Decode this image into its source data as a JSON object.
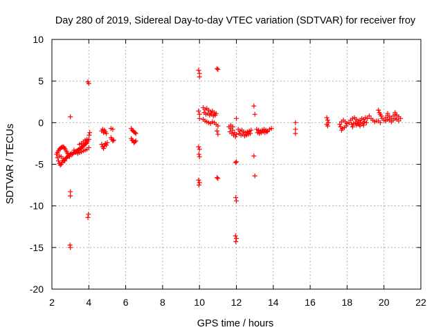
{
  "chart_data": {
    "type": "scatter",
    "title": "Day 280 of 2019, Sidereal Day-to-day VTEC variation (SDTVAR) for receiver froy",
    "xlabel": "GPS time / hours",
    "ylabel": "SDTVAR / TECUs",
    "xlim": [
      2,
      22
    ],
    "ylim": [
      -20,
      10
    ],
    "xticks": [
      2,
      4,
      6,
      8,
      10,
      12,
      14,
      16,
      18,
      20,
      22
    ],
    "yticks": [
      -20,
      -15,
      -10,
      -5,
      0,
      5,
      10
    ],
    "grid": true,
    "marker": "plus",
    "color": "#ff0000",
    "series": [
      {
        "name": "SDTVAR",
        "points": [
          [
            2.25,
            -3.8
          ],
          [
            2.3,
            -4.2
          ],
          [
            2.35,
            -4.6
          ],
          [
            2.4,
            -4.9
          ],
          [
            2.45,
            -5.1
          ],
          [
            2.5,
            -5.0
          ],
          [
            2.55,
            -4.8
          ],
          [
            2.6,
            -4.6
          ],
          [
            2.65,
            -4.5
          ],
          [
            2.7,
            -4.4
          ],
          [
            2.75,
            -4.3
          ],
          [
            2.8,
            -4.2
          ],
          [
            2.85,
            -4.1
          ],
          [
            2.9,
            -4.0
          ],
          [
            2.95,
            -3.9
          ],
          [
            3.0,
            -3.8
          ],
          [
            3.05,
            -3.7
          ],
          [
            2.3,
            -3.6
          ],
          [
            2.35,
            -3.4
          ],
          [
            2.4,
            -3.2
          ],
          [
            2.45,
            -3.1
          ],
          [
            2.5,
            -3.0
          ],
          [
            2.55,
            -2.95
          ],
          [
            2.6,
            -2.9
          ],
          [
            2.65,
            -2.95
          ],
          [
            2.7,
            -3.1
          ],
          [
            2.75,
            -3.3
          ],
          [
            2.8,
            -3.5
          ],
          [
            2.85,
            -3.7
          ],
          [
            2.9,
            -3.9
          ],
          [
            2.95,
            -4.1
          ],
          [
            2.4,
            -4.0
          ],
          [
            2.5,
            -4.1
          ],
          [
            2.6,
            -4.3
          ],
          [
            2.7,
            -4.6
          ],
          [
            3.0,
            0.7
          ],
          [
            3.0,
            -8.3
          ],
          [
            3.0,
            -8.8
          ],
          [
            2.98,
            -14.7
          ],
          [
            3.0,
            -15.0
          ],
          [
            3.1,
            -3.8
          ],
          [
            3.15,
            -3.7
          ],
          [
            3.2,
            -3.6
          ],
          [
            3.25,
            -3.5
          ],
          [
            3.3,
            -3.45
          ],
          [
            3.35,
            -3.4
          ],
          [
            3.4,
            -3.3
          ],
          [
            3.45,
            -3.25
          ],
          [
            3.5,
            -3.2
          ],
          [
            3.55,
            -3.1
          ],
          [
            3.6,
            -3.0
          ],
          [
            3.65,
            -2.9
          ],
          [
            3.7,
            -2.8
          ],
          [
            3.75,
            -2.7
          ],
          [
            3.8,
            -2.6
          ],
          [
            3.85,
            -2.5
          ],
          [
            3.9,
            -2.4
          ],
          [
            3.95,
            -2.2
          ],
          [
            4.0,
            -2.0
          ],
          [
            4.02,
            -1.5
          ],
          [
            4.05,
            -1.2
          ],
          [
            3.2,
            -3.3
          ],
          [
            3.3,
            -3.6
          ],
          [
            3.4,
            -3.7
          ],
          [
            3.5,
            -3.6
          ],
          [
            3.6,
            -3.5
          ],
          [
            3.7,
            -3.4
          ],
          [
            3.8,
            -3.3
          ],
          [
            3.9,
            -3.2
          ],
          [
            4.0,
            -3.0
          ],
          [
            3.5,
            -2.6
          ],
          [
            3.6,
            -2.5
          ],
          [
            3.7,
            -2.3
          ],
          [
            3.8,
            -2.1
          ],
          [
            3.9,
            -2.0
          ],
          [
            3.95,
            4.9
          ],
          [
            4.0,
            4.7
          ],
          [
            3.98,
            -11.0
          ],
          [
            3.95,
            -11.4
          ],
          [
            4.7,
            -1.0
          ],
          [
            4.75,
            -0.8
          ],
          [
            4.8,
            -1.2
          ],
          [
            4.85,
            -0.9
          ],
          [
            4.9,
            -1.1
          ],
          [
            4.95,
            -1.3
          ],
          [
            4.7,
            -2.6
          ],
          [
            4.75,
            -2.9
          ],
          [
            4.8,
            -3.1
          ],
          [
            4.85,
            -2.8
          ],
          [
            4.9,
            -2.5
          ],
          [
            4.95,
            -2.7
          ],
          [
            5.0,
            -2.4
          ],
          [
            5.2,
            -0.7
          ],
          [
            5.3,
            -0.8
          ],
          [
            5.2,
            -1.8
          ],
          [
            5.25,
            -2.0
          ],
          [
            5.3,
            -2.2
          ],
          [
            5.35,
            -2.1
          ],
          [
            6.3,
            -0.7
          ],
          [
            6.35,
            -0.9
          ],
          [
            6.4,
            -1.0
          ],
          [
            6.45,
            -1.1
          ],
          [
            6.5,
            -1.2
          ],
          [
            6.55,
            -1.3
          ],
          [
            6.3,
            -1.9
          ],
          [
            6.35,
            -2.1
          ],
          [
            6.4,
            -2.2
          ],
          [
            6.45,
            -2.4
          ],
          [
            6.5,
            -2.3
          ],
          [
            6.55,
            -2.2
          ],
          [
            9.95,
            6.3
          ],
          [
            10.0,
            5.9
          ],
          [
            10.0,
            5.5
          ],
          [
            9.95,
            1.4
          ],
          [
            10.0,
            1.0
          ],
          [
            10.0,
            0.5
          ],
          [
            9.95,
            -2.9
          ],
          [
            10.0,
            -3.2
          ],
          [
            9.97,
            -3.8
          ],
          [
            10.0,
            -4.1
          ],
          [
            9.95,
            -6.9
          ],
          [
            10.0,
            -7.2
          ],
          [
            9.97,
            -7.5
          ],
          [
            10.2,
            1.8
          ],
          [
            10.3,
            1.6
          ],
          [
            10.4,
            1.7
          ],
          [
            10.5,
            1.5
          ],
          [
            10.6,
            1.3
          ],
          [
            10.7,
            1.4
          ],
          [
            10.8,
            1.2
          ],
          [
            10.9,
            1.1
          ],
          [
            10.25,
            1.2
          ],
          [
            10.35,
            1.0
          ],
          [
            10.45,
            1.1
          ],
          [
            10.55,
            0.9
          ],
          [
            10.65,
            1.0
          ],
          [
            10.75,
            0.8
          ],
          [
            10.85,
            0.9
          ],
          [
            10.2,
            0.4
          ],
          [
            10.3,
            0.2
          ],
          [
            10.4,
            0.1
          ],
          [
            10.5,
            0.0
          ],
          [
            10.6,
            -0.1
          ],
          [
            10.7,
            0.1
          ],
          [
            10.8,
            0.0
          ],
          [
            10.9,
            -0.2
          ],
          [
            11.0,
            -0.4
          ],
          [
            11.0,
            6.4
          ],
          [
            10.95,
            6.5
          ],
          [
            10.95,
            -6.6
          ],
          [
            11.0,
            -6.7
          ],
          [
            10.95,
            -1.0
          ],
          [
            11.0,
            -1.4
          ],
          [
            11.6,
            -0.5
          ],
          [
            11.7,
            -0.7
          ],
          [
            11.8,
            -0.9
          ],
          [
            11.9,
            -1.2
          ],
          [
            12.0,
            -1.4
          ],
          [
            11.65,
            -1.1
          ],
          [
            11.75,
            -1.3
          ],
          [
            11.85,
            -1.5
          ],
          [
            11.95,
            -1.7
          ],
          [
            11.7,
            -0.3
          ],
          [
            11.8,
            -0.5
          ],
          [
            12.0,
            0.5
          ],
          [
            11.95,
            -4.8
          ],
          [
            12.0,
            -4.7
          ],
          [
            11.97,
            -9.0
          ],
          [
            12.0,
            -9.4
          ],
          [
            11.95,
            -13.6
          ],
          [
            12.0,
            -13.9
          ],
          [
            11.97,
            -14.3
          ],
          [
            12.1,
            -0.8
          ],
          [
            12.2,
            -1.0
          ],
          [
            12.3,
            -0.9
          ],
          [
            12.4,
            -1.1
          ],
          [
            12.5,
            -1.2
          ],
          [
            12.6,
            -1.1
          ],
          [
            12.7,
            -1.0
          ],
          [
            12.8,
            -0.9
          ],
          [
            12.15,
            -1.3
          ],
          [
            12.25,
            -1.5
          ],
          [
            12.35,
            -1.4
          ],
          [
            12.45,
            -1.6
          ],
          [
            12.55,
            -1.5
          ],
          [
            12.65,
            -1.4
          ],
          [
            12.75,
            -1.3
          ],
          [
            12.95,
            2.0
          ],
          [
            13.0,
            1.0
          ],
          [
            12.95,
            -4.0
          ],
          [
            13.0,
            -6.4
          ],
          [
            13.1,
            -0.8
          ],
          [
            13.2,
            -0.9
          ],
          [
            13.3,
            -1.0
          ],
          [
            13.4,
            -0.9
          ],
          [
            13.5,
            -0.8
          ],
          [
            13.6,
            -0.9
          ],
          [
            13.7,
            -1.0
          ],
          [
            13.8,
            -0.8
          ],
          [
            13.9,
            -0.7
          ],
          [
            13.15,
            -1.2
          ],
          [
            13.25,
            -1.3
          ],
          [
            13.35,
            -1.2
          ],
          [
            13.45,
            -1.1
          ],
          [
            13.55,
            -1.2
          ],
          [
            13.65,
            -1.1
          ],
          [
            15.2,
            0.0
          ],
          [
            15.2,
            -0.8
          ],
          [
            15.2,
            -1.3
          ],
          [
            16.9,
            0.6
          ],
          [
            16.95,
            0.3
          ],
          [
            17.0,
            0.0
          ],
          [
            16.9,
            -0.2
          ],
          [
            16.95,
            -0.4
          ],
          [
            17.6,
            -0.2
          ],
          [
            17.7,
            0.1
          ],
          [
            17.8,
            0.3
          ],
          [
            17.9,
            0.1
          ],
          [
            18.0,
            -0.1
          ],
          [
            18.1,
            0.0
          ],
          [
            17.65,
            -0.5
          ],
          [
            17.75,
            -0.7
          ],
          [
            17.85,
            -0.6
          ],
          [
            17.95,
            -0.4
          ],
          [
            17.7,
            -0.9
          ],
          [
            18.2,
            0.3
          ],
          [
            18.3,
            0.5
          ],
          [
            18.4,
            0.6
          ],
          [
            18.5,
            0.4
          ],
          [
            18.6,
            0.2
          ],
          [
            18.7,
            0.3
          ],
          [
            18.8,
            0.5
          ],
          [
            18.9,
            0.4
          ],
          [
            19.0,
            0.6
          ],
          [
            19.1,
            0.5
          ],
          [
            18.25,
            -0.2
          ],
          [
            18.35,
            -0.1
          ],
          [
            18.45,
            0.0
          ],
          [
            18.55,
            -0.1
          ],
          [
            18.65,
            -0.2
          ],
          [
            18.75,
            0.0
          ],
          [
            18.85,
            -0.1
          ],
          [
            18.95,
            0.1
          ],
          [
            19.05,
            0.0
          ],
          [
            18.3,
            -0.5
          ],
          [
            18.5,
            -0.3
          ],
          [
            18.7,
            -0.4
          ],
          [
            18.9,
            -0.3
          ],
          [
            19.2,
            0.8
          ],
          [
            19.3,
            0.5
          ],
          [
            19.4,
            0.3
          ],
          [
            19.5,
            0.1
          ],
          [
            19.6,
            0.2
          ],
          [
            19.7,
            1.5
          ],
          [
            19.75,
            1.2
          ],
          [
            19.8,
            1.0
          ],
          [
            19.85,
            0.8
          ],
          [
            19.9,
            0.5
          ],
          [
            19.7,
            0.2
          ],
          [
            19.8,
            0.0
          ],
          [
            20.0,
            0.3
          ],
          [
            20.1,
            0.6
          ],
          [
            20.2,
            0.9
          ],
          [
            20.3,
            0.7
          ],
          [
            20.4,
            0.5
          ],
          [
            20.5,
            0.8
          ],
          [
            20.6,
            1.0
          ],
          [
            20.7,
            0.9
          ],
          [
            20.8,
            0.7
          ],
          [
            20.1,
            0.2
          ],
          [
            20.2,
            0.4
          ],
          [
            20.3,
            0.3
          ],
          [
            20.4,
            0.1
          ],
          [
            20.5,
            0.3
          ],
          [
            20.6,
            0.5
          ],
          [
            20.7,
            0.4
          ],
          [
            20.8,
            0.2
          ],
          [
            20.9,
            0.5
          ],
          [
            20.2,
            1.1
          ],
          [
            20.6,
            1.2
          ]
        ]
      }
    ]
  }
}
